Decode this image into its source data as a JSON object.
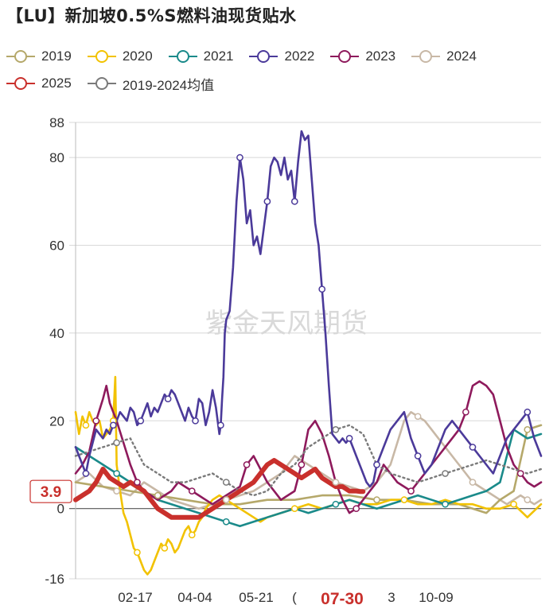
{
  "chart_data": {
    "type": "line",
    "title": "【LU】新加坡0.5%S燃料油现货贴水",
    "watermark": "紫金天风期货",
    "ylim": [
      -16,
      88
    ],
    "yticks": [
      -16,
      0,
      20,
      40,
      60,
      80,
      88
    ],
    "xticks": [
      "02-17",
      "04-04",
      "05-21",
      "07-30",
      "10-09"
    ],
    "partial_ticks": [
      "(",
      "3"
    ],
    "current_date_label": "07-30",
    "current_value_label": "3.9",
    "legend": [
      "2019",
      "2020",
      "2021",
      "2022",
      "2023",
      "2024",
      "2025",
      "2019-2024均值"
    ],
    "series": [
      {
        "name": "2019",
        "color": "#b5a86a",
        "style": "solid",
        "x": [
          0,
          40,
          80,
          120,
          160,
          200,
          240,
          280,
          320,
          360,
          400,
          440,
          480,
          520,
          560,
          580,
          600,
          620,
          640,
          660,
          680
        ],
        "values": [
          6,
          5,
          4,
          3,
          2,
          1,
          1,
          2,
          2,
          3,
          3,
          2,
          2,
          1,
          1,
          0,
          -1,
          2,
          4,
          18,
          19
        ]
      },
      {
        "name": "2020",
        "color": "#f2c200",
        "style": "solid",
        "x": [
          0,
          5,
          10,
          15,
          20,
          25,
          30,
          35,
          40,
          45,
          50,
          55,
          58,
          60,
          65,
          70,
          75,
          80,
          85,
          90,
          95,
          100,
          105,
          110,
          115,
          120,
          125,
          130,
          135,
          140,
          145,
          150,
          155,
          160,
          165,
          170,
          175,
          180,
          185,
          190,
          195,
          200,
          210,
          220,
          230,
          240,
          250,
          260,
          270,
          280,
          300,
          320,
          340,
          360,
          380,
          400,
          420,
          440,
          460,
          480,
          500,
          520,
          540,
          560,
          580,
          600,
          620,
          640,
          660,
          680
        ],
        "values": [
          22,
          17,
          21,
          19,
          22,
          20,
          19,
          20,
          16,
          17,
          18,
          20,
          30,
          10,
          4,
          -1,
          -3,
          -6,
          -9,
          -10,
          -12,
          -14,
          -15,
          -14,
          -12,
          -10,
          -8,
          -9,
          -7,
          -8,
          -10,
          -9,
          -7,
          -5,
          -4,
          -6,
          -5,
          -3,
          -2,
          0,
          1,
          2,
          3,
          2,
          1,
          0,
          -1,
          -2,
          -3,
          -2,
          -1,
          0,
          1,
          0,
          1,
          2,
          1,
          1,
          2,
          2,
          1,
          1,
          2,
          1,
          1,
          0,
          0,
          1,
          -2,
          1
        ]
      },
      {
        "name": "2021",
        "color": "#1a8a8a",
        "style": "solid",
        "x": [
          0,
          20,
          40,
          60,
          80,
          100,
          120,
          140,
          160,
          180,
          200,
          220,
          240,
          260,
          280,
          300,
          320,
          340,
          360,
          380,
          400,
          420,
          440,
          460,
          480,
          500,
          520,
          540,
          560,
          580,
          600,
          620,
          640,
          660,
          680
        ],
        "values": [
          14,
          12,
          10,
          8,
          6,
          4,
          2,
          1,
          0,
          -1,
          -2,
          -3,
          -4,
          -3,
          -2,
          -1,
          0,
          -1,
          0,
          1,
          2,
          1,
          0,
          1,
          2,
          3,
          2,
          1,
          2,
          3,
          4,
          6,
          18,
          16,
          17
        ]
      },
      {
        "name": "2022",
        "color": "#4b3a9a",
        "style": "solid",
        "x": [
          0,
          5,
          10,
          15,
          20,
          25,
          30,
          35,
          40,
          45,
          50,
          55,
          60,
          65,
          70,
          75,
          80,
          85,
          90,
          95,
          100,
          105,
          110,
          115,
          120,
          125,
          130,
          135,
          140,
          145,
          150,
          155,
          160,
          165,
          170,
          175,
          180,
          185,
          190,
          195,
          200,
          205,
          210,
          212,
          214,
          216,
          218,
          220,
          225,
          230,
          235,
          240,
          245,
          250,
          255,
          260,
          265,
          270,
          275,
          280,
          285,
          290,
          295,
          300,
          305,
          310,
          315,
          320,
          325,
          330,
          335,
          340,
          345,
          350,
          355,
          360,
          365,
          370,
          375,
          380,
          385,
          390,
          395,
          400,
          405,
          410,
          415,
          420,
          425,
          430,
          435,
          440,
          445,
          450,
          455,
          460,
          470,
          480,
          490,
          500,
          510,
          520,
          530,
          540,
          550,
          560,
          570,
          580,
          590,
          600,
          610,
          620,
          630,
          640,
          650,
          660,
          670,
          680
        ],
        "values": [
          14,
          12,
          10,
          8,
          12,
          15,
          18,
          17,
          16,
          18,
          17,
          19,
          20,
          22,
          21,
          20,
          23,
          22,
          19,
          20,
          22,
          24,
          21,
          23,
          22,
          24,
          26,
          25,
          27,
          26,
          24,
          22,
          20,
          23,
          21,
          20,
          25,
          24,
          19,
          22,
          27,
          23,
          17,
          19,
          25,
          30,
          40,
          43,
          45,
          55,
          70,
          80,
          75,
          65,
          68,
          60,
          62,
          58,
          64,
          70,
          78,
          80,
          79,
          76,
          80,
          75,
          77,
          70,
          79,
          86,
          84,
          85,
          75,
          65,
          60,
          50,
          40,
          28,
          17,
          16,
          15,
          16,
          15,
          16,
          14,
          12,
          10,
          8,
          6,
          5,
          6,
          10,
          12,
          14,
          16,
          18,
          20,
          22,
          16,
          12,
          8,
          10,
          14,
          18,
          20,
          18,
          16,
          14,
          12,
          10,
          8,
          12,
          16,
          18,
          20,
          22,
          16,
          12
        ]
      },
      {
        "name": "2023",
        "color": "#8e1a5c",
        "style": "solid",
        "x": [
          0,
          10,
          20,
          30,
          40,
          45,
          50,
          55,
          60,
          70,
          80,
          90,
          100,
          110,
          120,
          130,
          140,
          150,
          160,
          170,
          180,
          190,
          200,
          210,
          220,
          230,
          240,
          250,
          260,
          270,
          280,
          290,
          300,
          310,
          320,
          330,
          340,
          350,
          360,
          370,
          380,
          390,
          400,
          410,
          420,
          430,
          440,
          450,
          460,
          470,
          480,
          490,
          500,
          510,
          520,
          530,
          540,
          550,
          560,
          570,
          580,
          590,
          600,
          610,
          620,
          630,
          640,
          650,
          660,
          670,
          680
        ],
        "values": [
          8,
          10,
          13,
          20,
          25,
          28,
          24,
          22,
          20,
          15,
          10,
          6,
          4,
          3,
          2,
          3,
          4,
          6,
          5,
          4,
          3,
          2,
          1,
          2,
          3,
          4,
          5,
          10,
          12,
          9,
          6,
          4,
          2,
          3,
          4,
          10,
          18,
          20,
          17,
          12,
          6,
          2,
          -1,
          0,
          2,
          4,
          6,
          10,
          8,
          6,
          5,
          4,
          6,
          8,
          10,
          12,
          14,
          16,
          18,
          22,
          28,
          29,
          28,
          26,
          20,
          14,
          10,
          8,
          6,
          5,
          6
        ]
      },
      {
        "name": "2024",
        "color": "#c8b8a6",
        "style": "solid",
        "x": [
          0,
          20,
          40,
          60,
          80,
          100,
          120,
          140,
          160,
          180,
          200,
          220,
          240,
          260,
          280,
          300,
          320,
          340,
          360,
          380,
          400,
          420,
          440,
          460,
          470,
          480,
          490,
          500,
          510,
          520,
          530,
          540,
          550,
          560,
          570,
          580,
          590,
          600,
          610,
          620,
          630,
          640,
          650,
          660,
          670,
          680
        ],
        "values": [
          6,
          8,
          5,
          4,
          3,
          6,
          4,
          2,
          1,
          0,
          1,
          2,
          3,
          4,
          6,
          8,
          12,
          10,
          8,
          6,
          5,
          4,
          6,
          10,
          15,
          20,
          22,
          21,
          20,
          18,
          16,
          14,
          12,
          10,
          8,
          6,
          5,
          4,
          3,
          2,
          1,
          2,
          3,
          2,
          1,
          2
        ]
      },
      {
        "name": "2025",
        "color": "#c9302c",
        "style": "bold",
        "x": [
          0,
          10,
          20,
          30,
          40,
          50,
          60,
          70,
          80,
          90,
          100,
          110,
          120,
          130,
          140,
          150,
          160,
          170,
          180,
          190,
          200,
          210,
          220,
          230,
          240,
          250,
          260,
          270,
          280,
          290,
          300,
          310,
          320,
          330,
          340,
          350,
          360,
          370,
          380,
          390,
          400,
          405,
          410,
          415,
          420
        ],
        "values": [
          2,
          3,
          4,
          6,
          9,
          7,
          6,
          5,
          6,
          5,
          4,
          2,
          0,
          -1,
          -2,
          -2,
          -2,
          -2,
          -2,
          -1,
          0,
          1,
          2,
          3,
          4,
          5,
          6,
          8,
          10,
          11,
          10,
          9,
          8,
          7,
          8,
          9,
          7,
          6,
          5,
          5,
          4,
          4,
          4,
          3.9,
          3.9
        ]
      },
      {
        "name": "2019-2024均值",
        "color": "#7a7a7a",
        "style": "dotted",
        "x": [
          0,
          20,
          40,
          60,
          80,
          100,
          120,
          140,
          160,
          180,
          200,
          220,
          240,
          260,
          280,
          300,
          320,
          340,
          360,
          380,
          400,
          420,
          440,
          460,
          480,
          500,
          520,
          540,
          560,
          580,
          600,
          620,
          640,
          660,
          680
        ],
        "values": [
          12,
          13,
          14,
          15,
          16,
          10,
          8,
          6,
          6,
          7,
          8,
          6,
          4,
          3,
          4,
          8,
          10,
          14,
          16,
          18,
          19,
          17,
          10,
          8,
          7,
          6,
          7,
          8,
          9,
          10,
          11,
          10,
          9,
          8,
          9
        ]
      }
    ]
  }
}
